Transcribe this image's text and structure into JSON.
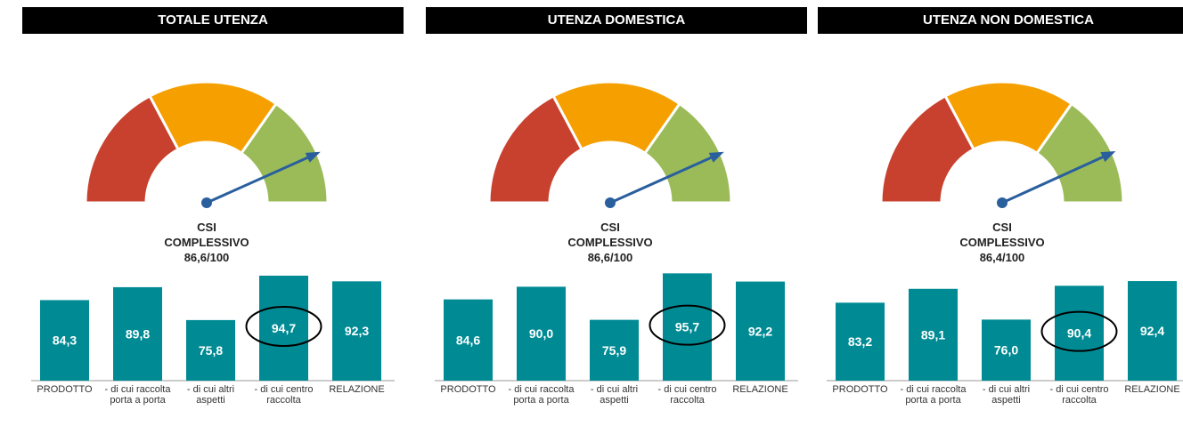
{
  "chart_data": [
    {
      "type": "bar",
      "title": "TOTALE UTENZA",
      "gauge": {
        "label_lines": [
          "CSI",
          "COMPLESSIVO"
        ],
        "value": 86.6,
        "value_label": "86,6/100",
        "lim": [
          0,
          100
        ]
      },
      "categories": [
        "PRODOTTO",
        "- di cui raccolta porta a porta",
        "- di cui altri aspetti",
        "- di cui centro raccolta",
        "RELAZIONE"
      ],
      "values": [
        84.3,
        89.8,
        75.8,
        94.7,
        92.3
      ],
      "value_labels": [
        "84,3",
        "89,8",
        "75,8",
        "94,7",
        "92,3"
      ],
      "color": "#008b94",
      "ylim": [
        50,
        100
      ],
      "highlight": 3
    },
    {
      "type": "bar",
      "title": "UTENZA DOMESTICA",
      "gauge": {
        "label_lines": [
          "CSI",
          "COMPLESSIVO"
        ],
        "value": 86.6,
        "value_label": "86,6/100",
        "lim": [
          0,
          100
        ]
      },
      "categories": [
        "PRODOTTO",
        "- di cui raccolta porta a porta",
        "- di cui altri aspetti",
        "- di cui centro raccolta",
        "RELAZIONE"
      ],
      "values": [
        84.6,
        90.0,
        75.9,
        95.7,
        92.2
      ],
      "value_labels": [
        "84,6",
        "90,0",
        "75,9",
        "95,7",
        "92,2"
      ],
      "color": "#008b94",
      "ylim": [
        50,
        100
      ],
      "highlight": 3
    },
    {
      "type": "bar",
      "title": "UTENZA NON DOMESTICA",
      "gauge": {
        "label_lines": [
          "CSI",
          "COMPLESSIVO"
        ],
        "value": 86.4,
        "value_label": "86,4/100",
        "lim": [
          0,
          100
        ]
      },
      "categories": [
        "PRODOTTO",
        "- di cui raccolta porta a porta",
        "- di cui altri aspetti",
        "- di cui centro raccolta",
        "RELAZIONE"
      ],
      "values": [
        83.2,
        89.1,
        76.0,
        90.4,
        92.4
      ],
      "value_labels": [
        "83,2",
        "89,1",
        "76,0",
        "90,4",
        "92,4"
      ],
      "color": "#008b94",
      "ylim": [
        50,
        100
      ],
      "highlight": 3
    }
  ]
}
